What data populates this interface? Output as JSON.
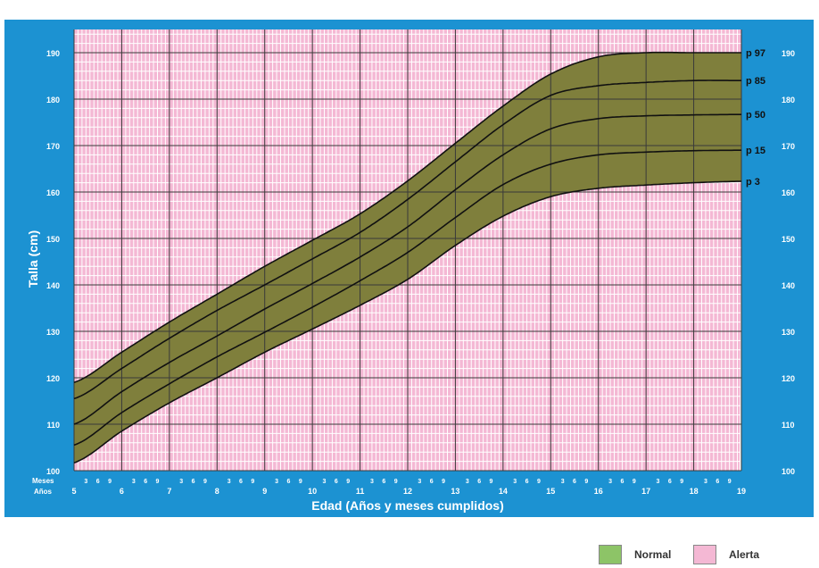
{
  "chart_data": {
    "type": "line",
    "title": "",
    "xlabel": "Edad (Años y meses cumplidos)",
    "ylabel": "Talla (cm)",
    "months_row_label": "Meses",
    "years_row_label": "Años",
    "month_tick_labels": [
      "3",
      "6",
      "9"
    ],
    "xlim": [
      5,
      19
    ],
    "ylim": [
      100,
      195
    ],
    "x_year_ticks": [
      5,
      6,
      7,
      8,
      9,
      10,
      11,
      12,
      13,
      14,
      15,
      16,
      17,
      18,
      19
    ],
    "y_ticks": [
      100,
      110,
      120,
      130,
      140,
      150,
      160,
      170,
      180,
      190
    ],
    "grid": true,
    "x": [
      5,
      6,
      7,
      8,
      9,
      10,
      11,
      12,
      13,
      14,
      15,
      16,
      17,
      18,
      19
    ],
    "series": [
      {
        "name": "p 97",
        "values": [
          119,
          125.5,
          132,
          138,
          144,
          149.6,
          155.3,
          162.4,
          170.5,
          178.5,
          185.4,
          189.1,
          190,
          190,
          190
        ]
      },
      {
        "name": "p 85",
        "values": [
          115.5,
          122,
          128.5,
          134.5,
          140,
          145.6,
          151.3,
          158.4,
          166.5,
          174.5,
          180.8,
          182.9,
          183.6,
          184,
          184
        ]
      },
      {
        "name": "p 50",
        "values": [
          110,
          117,
          123.3,
          129,
          134.8,
          140.3,
          146,
          152.5,
          160.5,
          168,
          173.6,
          175.8,
          176.4,
          176.6,
          176.7
        ]
      },
      {
        "name": "p 15",
        "values": [
          105.5,
          112.5,
          118.7,
          124.5,
          129.8,
          135.2,
          140.9,
          147,
          154.5,
          161.6,
          166,
          168,
          168.6,
          168.9,
          169
        ]
      },
      {
        "name": "p 3",
        "values": [
          101.7,
          108.5,
          114.6,
          120,
          125.5,
          130.5,
          135.6,
          141.2,
          148.5,
          154.8,
          159,
          160.8,
          161.5,
          162,
          162.3
        ]
      }
    ],
    "legend": [
      {
        "label": "Normal",
        "color": "#8dc467"
      },
      {
        "label": "Alerta",
        "color": "#f4b8d4"
      }
    ],
    "colors": {
      "frame": "#1c92d2",
      "alert_zone": "#f4b8d4",
      "normal_band": "#7f7f3c",
      "curve": "#111111"
    }
  }
}
